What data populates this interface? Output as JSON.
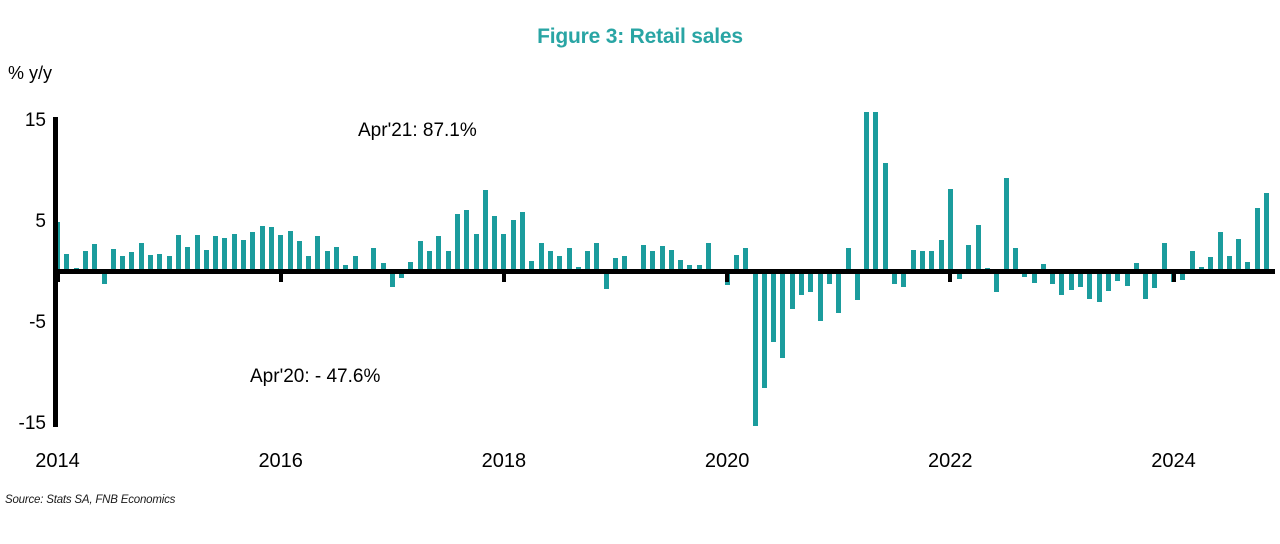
{
  "title": "Figure 3: Retail sales",
  "y_axis_unit_label": "% y/y",
  "source_note": "Source: Stats SA, FNB Economics",
  "annotations": {
    "apr21": "Apr'21: 87.1%",
    "apr20": "Apr'20: - 47.6%"
  },
  "colors": {
    "bar": "#1b9c9d",
    "title": "#29a5a4",
    "axis": "#000000"
  },
  "chart_data": {
    "type": "bar",
    "title": "Figure 3: Retail sales",
    "ylabel": "% y/y",
    "xlabel": "",
    "frequency": "monthly",
    "start_month": "2014-01",
    "end_month": "2024-11",
    "y_tick_labels": [
      "15",
      "5",
      "-5",
      "-15"
    ],
    "y_tick_values": [
      15,
      5,
      -5,
      -15
    ],
    "x_tick_labels": [
      "2014",
      "2016",
      "2018",
      "2020",
      "2022",
      "2024"
    ],
    "ylim_display": [
      -15.2,
      15.8
    ],
    "grid": false,
    "legend": false,
    "clipped_bars_annotated": [
      {
        "month": "2020-04",
        "value": -47.6,
        "label": "Apr'20: - 47.6%"
      },
      {
        "month": "2021-04",
        "value": 87.1,
        "label": "Apr'21: 87.1%"
      }
    ],
    "series": [
      {
        "name": "Retail sales % y/y",
        "values": [
          5.0,
          1.8,
          0.4,
          2.1,
          2.8,
          -1.2,
          2.3,
          1.6,
          2.0,
          2.9,
          1.7,
          1.8,
          1.6,
          3.7,
          2.5,
          3.7,
          2.2,
          3.6,
          3.4,
          3.8,
          3.2,
          4.0,
          4.6,
          4.5,
          3.7,
          4.1,
          3.1,
          1.6,
          3.6,
          2.1,
          2.5,
          0.7,
          1.6,
          -0.2,
          2.4,
          0.9,
          -1.5,
          -0.6,
          1.0,
          3.1,
          2.1,
          3.6,
          2.1,
          5.7,
          6.1,
          3.8,
          8.1,
          5.5,
          3.8,
          5.1,
          5.9,
          1.1,
          2.9,
          2.1,
          1.6,
          2.4,
          0.5,
          2.1,
          2.9,
          -1.7,
          1.4,
          1.6,
          0.1,
          2.7,
          2.1,
          2.6,
          2.2,
          1.2,
          0.7,
          0.7,
          2.9,
          0.1,
          -1.3,
          1.7,
          2.4,
          -47.6,
          -11.5,
          -6.9,
          -8.5,
          -3.7,
          -2.3,
          -2.0,
          -4.9,
          -1.2,
          -4.1,
          2.4,
          -2.8,
          87.1,
          15.8,
          10.8,
          -1.2,
          -1.5,
          2.2,
          2.1,
          2.1,
          3.2,
          8.2,
          -0.7,
          2.7,
          4.7,
          0.4,
          -2.0,
          9.3,
          2.4,
          -0.5,
          -1.1,
          0.8,
          -1.2,
          -2.3,
          -1.8,
          -1.5,
          -2.7,
          -3.0,
          -1.9,
          -0.9,
          -1.4,
          0.9,
          -2.7,
          -1.6,
          2.9,
          -1.0,
          -0.8,
          2.1,
          0.5,
          1.5,
          4.0,
          1.6,
          3.3,
          1.0,
          6.3,
          7.8
        ]
      }
    ]
  }
}
